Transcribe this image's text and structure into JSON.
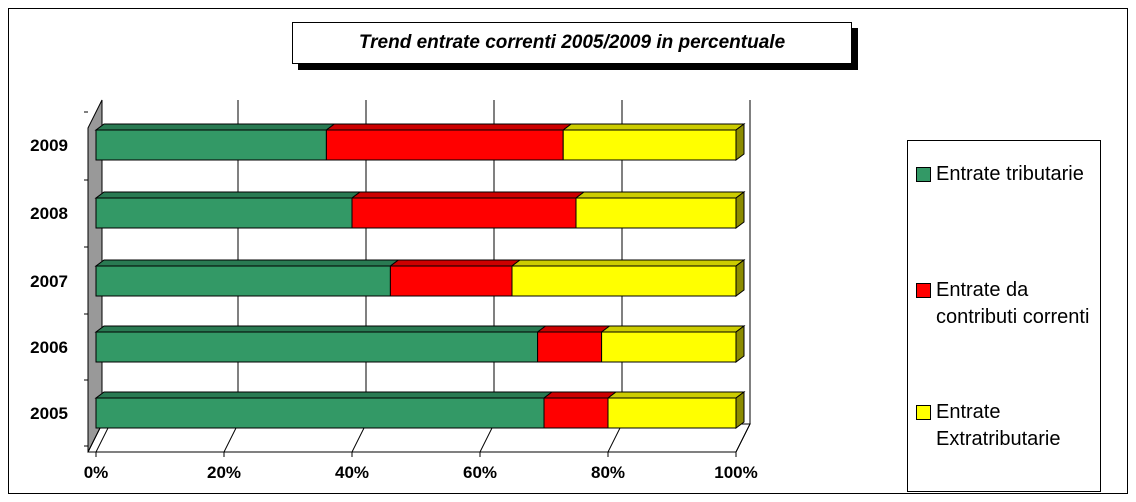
{
  "chart_data": {
    "type": "bar",
    "orientation": "horizontal",
    "stacking": "percent",
    "title": "Trend entrate correnti 2005/2009 in percentuale",
    "categories": [
      "2005",
      "2006",
      "2007",
      "2008",
      "2009"
    ],
    "series": [
      {
        "name": "Entrate tributarie",
        "color": "#339966",
        "values": [
          70,
          69,
          46,
          40,
          36
        ]
      },
      {
        "name": "Entrate da contributi correnti",
        "color": "#ff0000",
        "values": [
          10,
          10,
          19,
          35,
          37
        ]
      },
      {
        "name": "Entrate Extratributarie",
        "color": "#ffff00",
        "values": [
          20,
          21,
          35,
          25,
          27
        ]
      }
    ],
    "xlim": [
      0,
      100
    ],
    "xticks": [
      "0%",
      "20%",
      "40%",
      "60%",
      "80%",
      "100%"
    ],
    "grid": true,
    "legend_position": "right"
  }
}
